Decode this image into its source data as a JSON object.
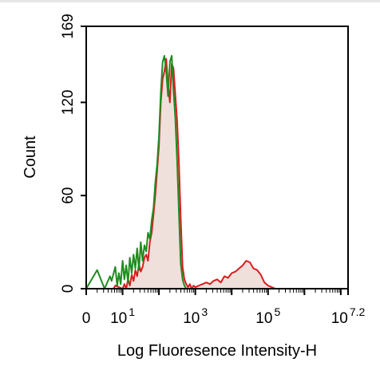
{
  "chart_data": {
    "type": "area",
    "title": "",
    "xlabel": "Log Fluoresence Intensity-H",
    "ylabel": "Count",
    "x_scale": "log",
    "xlim": [
      1,
      15848931.92
    ],
    "ylim": [
      0,
      169
    ],
    "y_ticks": [
      {
        "value": 0,
        "label": "0"
      },
      {
        "value": 60,
        "label": "60"
      },
      {
        "value": 120,
        "label": "120"
      },
      {
        "value": 169,
        "label": "169"
      }
    ],
    "x_ticks": [
      {
        "value": 1,
        "base": "0",
        "exp": ""
      },
      {
        "value": 10,
        "base": "10",
        "exp": "1"
      },
      {
        "value": 1000,
        "base": "10",
        "exp": "3"
      },
      {
        "value": 100000,
        "base": "10",
        "exp": "5"
      },
      {
        "value": 15848931.92,
        "base": "10",
        "exp": "7.2"
      }
    ],
    "grid": false,
    "legend": "none",
    "series": [
      {
        "color": "#d81e1e",
        "fill": "#efe0dc",
        "x": [
          1,
          5.6,
          6.3,
          7.9,
          10,
          11.2,
          12.6,
          14.1,
          15.8,
          17.8,
          20,
          22.4,
          25.1,
          28.2,
          31.6,
          35.5,
          39.8,
          44.7,
          50.1,
          56.2,
          63.1,
          70.8,
          79.4,
          89.1,
          100,
          112,
          126,
          141,
          158,
          178,
          200,
          224,
          251,
          282,
          316,
          355,
          398,
          447,
          501,
          562,
          631,
          708,
          794,
          891,
          1000,
          1259,
          1585,
          1995,
          2512,
          3162,
          3981,
          5012,
          6310,
          7943,
          10000,
          12589,
          15849,
          19953,
          25119,
          31623,
          39811,
          50119,
          63096,
          79433,
          100000,
          125893,
          158489
        ],
        "y": [
          0,
          0,
          2,
          1,
          0,
          3,
          0,
          6,
          2,
          9,
          5,
          12,
          8,
          16,
          11,
          14,
          20,
          22,
          18,
          30,
          36,
          48,
          60,
          76,
          92,
          120,
          135,
          140,
          148,
          132,
          120,
          145,
          142,
          125,
          108,
          80,
          45,
          14,
          6,
          3,
          1,
          3,
          0,
          2,
          1,
          2,
          3,
          4,
          3,
          5,
          6,
          4,
          8,
          7,
          10,
          11,
          13,
          15,
          18,
          17,
          13,
          12,
          9,
          4,
          2,
          1,
          0
        ]
      },
      {
        "color": "#1f8c1f",
        "x": [
          1,
          2,
          3.2,
          4.5,
          5,
          6.3,
          7.1,
          7.9,
          8.9,
          10,
          11.2,
          12.6,
          14.1,
          15.8,
          17.8,
          20,
          22.4,
          25.1,
          28.2,
          31.6,
          35.5,
          39.8,
          44.7,
          50.1,
          56.2,
          63.1,
          70.8,
          79.4,
          89.1,
          100,
          112,
          126,
          141,
          158,
          178,
          200,
          224,
          251,
          282,
          316,
          355,
          398,
          447,
          501,
          562
        ],
        "y": [
          0,
          12,
          0,
          8,
          5,
          14,
          2,
          10,
          3,
          18,
          6,
          15,
          4,
          20,
          10,
          22,
          13,
          26,
          12,
          30,
          18,
          28,
          24,
          36,
          32,
          44,
          52,
          68,
          80,
          98,
          126,
          146,
          150,
          140,
          124,
          146,
          150,
          128,
          110,
          82,
          48,
          16,
          6,
          2,
          0
        ]
      }
    ]
  }
}
